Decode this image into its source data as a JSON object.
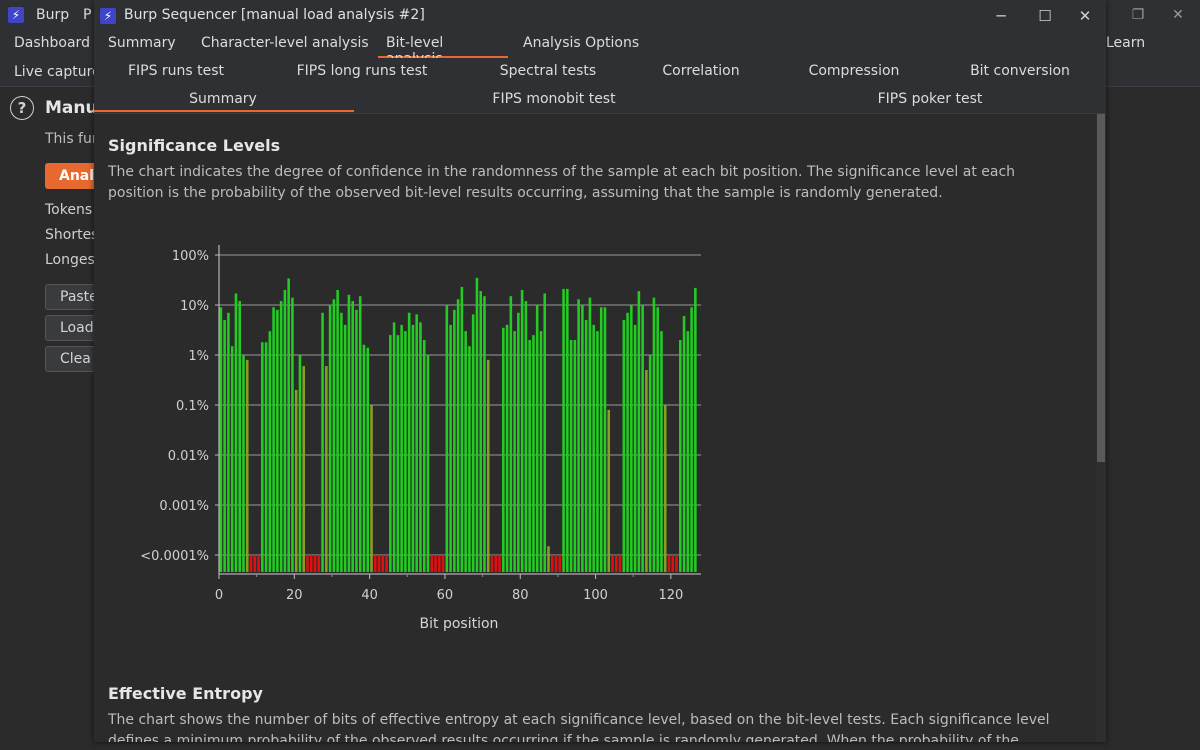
{
  "background": {
    "title_left": "Burp",
    "title_fragment": "P",
    "tabs": {
      "dashboard": "Dashboard",
      "learn": "Learn"
    },
    "subtab": "Live capture",
    "heading": "Manu",
    "text_this": "This fur",
    "analyze_button": "Analy",
    "tokens_label": "Tokens",
    "shortest_label": "Shortes",
    "longest_label": "Longes",
    "paste_button": "Paste",
    "load_button": "Load",
    "clear_button": "Clea"
  },
  "window": {
    "title": "Burp Sequencer [manual load analysis #2]",
    "minimize": "─",
    "maximize": "☐",
    "close": "✕"
  },
  "tabs": [
    "Summary",
    "Character-level analysis",
    "Bit-level analysis",
    "Analysis Options"
  ],
  "active_tab": "Bit-level analysis",
  "subtabs_row1": [
    "FIPS runs test",
    "FIPS long runs test",
    "Spectral tests",
    "Correlation",
    "Compression",
    "Bit conversion"
  ],
  "subtabs_row2": [
    "Summary",
    "FIPS monobit test",
    "FIPS poker test"
  ],
  "active_subtab": "Summary",
  "significance": {
    "title": "Significance Levels",
    "description": "The chart indicates the degree of confidence in the randomness of the sample at each bit position. The significance level at each position is the probability of the observed bit-level results occurring, assuming that the sample is randomly generated."
  },
  "chart_data": {
    "type": "bar",
    "xlabel": "Bit position",
    "ylabel": "",
    "y_scale": "log",
    "y_tick_labels": [
      "100%",
      "10%",
      "1%",
      "0.1%",
      "0.01%",
      "0.001%",
      "<0.0001%"
    ],
    "x_tick_labels": [
      "0",
      "20",
      "40",
      "60",
      "80",
      "100",
      "120"
    ],
    "xlim": [
      0,
      128
    ],
    "colors": {
      "pass": "#22cc22",
      "marginal": "#88a020",
      "fail": "#dd1111"
    },
    "groups": [
      {
        "name": "pass",
        "color": "#22cc22"
      },
      {
        "name": "fail",
        "color": "#dd1111"
      }
    ],
    "values_percent": [
      9,
      5,
      7,
      1.5,
      17,
      12,
      1,
      0.8,
      0.0001,
      0.0001,
      0.0001,
      1.8,
      1.8,
      3,
      9,
      8,
      12,
      20,
      34,
      14,
      0.2,
      1,
      0.6,
      0.0001,
      0.0001,
      0.0001,
      0.0001,
      7,
      0.6,
      10,
      13,
      20,
      7,
      4,
      16,
      12,
      8,
      15,
      1.6,
      1.4,
      0.1,
      0.0001,
      0.0001,
      0.0001,
      0.0001,
      2.5,
      4.5,
      2.5,
      4,
      3,
      7,
      4,
      6.5,
      4.5,
      2,
      1,
      0.0001,
      0.0001,
      0.0001,
      0.0001,
      10,
      4,
      8,
      13,
      23,
      3,
      1.5,
      6.5,
      35,
      19,
      15,
      0.8,
      0.0001,
      0.0001,
      0.0001,
      3.5,
      4,
      15,
      3,
      7,
      20,
      12,
      2,
      2.5,
      10,
      3,
      17,
      0.00015,
      0.0001,
      0.0001,
      0.0001,
      21,
      21,
      2,
      2,
      13,
      10,
      5,
      14,
      4,
      3,
      9,
      9,
      0.08,
      0.0001,
      0.0001,
      0.0001,
      5,
      7,
      10,
      4,
      19,
      10,
      0.5,
      1,
      14,
      9,
      3,
      0.1,
      0.0001,
      0.0001,
      0.0001,
      2,
      6,
      3,
      9,
      22
    ]
  },
  "entropy": {
    "title": "Effective Entropy",
    "description": "The chart shows the number of bits of effective entropy at each significance level, based on the bit-level tests. Each significance level defines a minimum probability of the observed results occurring if the sample is randomly generated. When the probability of the observed results occurring"
  }
}
